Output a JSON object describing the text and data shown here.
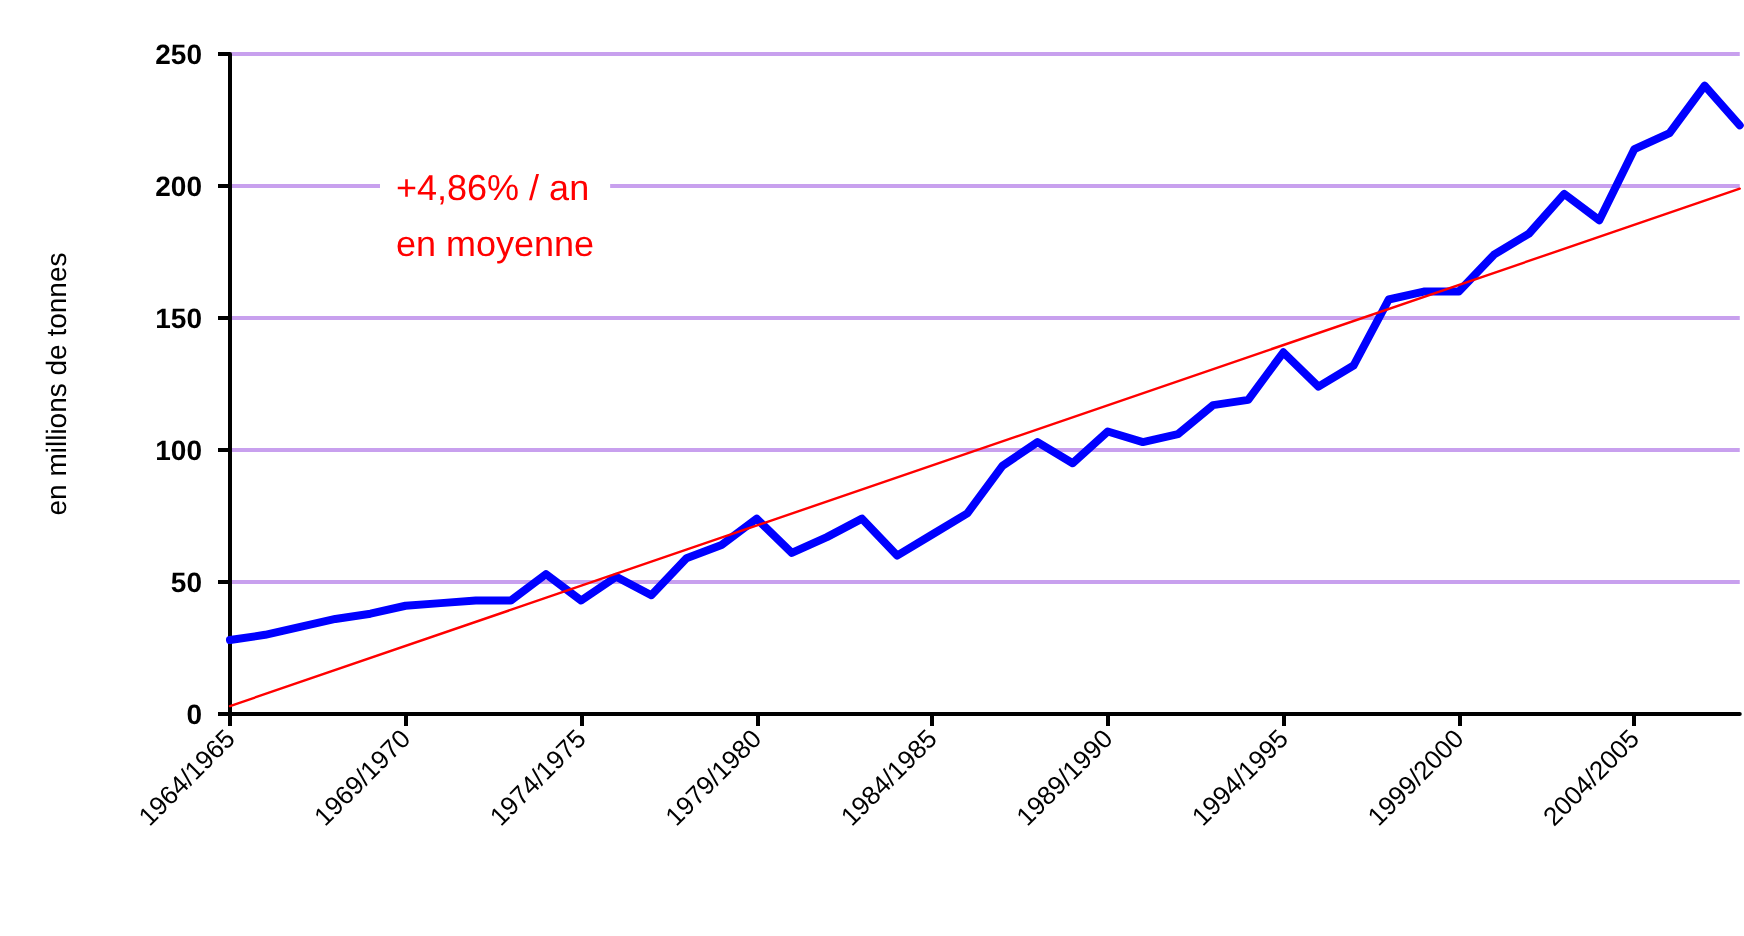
{
  "chart_data": {
    "type": "line",
    "ylabel": "en millions de tonnes",
    "categories": [
      "1964/1965",
      null,
      null,
      null,
      null,
      "1969/1970",
      null,
      null,
      null,
      null,
      "1974/1975",
      null,
      null,
      null,
      null,
      "1979/1980",
      null,
      null,
      null,
      null,
      "1984/1985",
      null,
      null,
      null,
      null,
      "1989/1990",
      null,
      null,
      null,
      null,
      "1994/1995",
      null,
      null,
      null,
      null,
      "1999/2000",
      null,
      null,
      null,
      null,
      "2004/2005",
      null,
      null,
      null
    ],
    "series": [
      {
        "color": "#0000ff",
        "values": [
          28,
          30,
          33,
          36,
          38,
          41,
          42,
          43,
          43,
          53,
          43,
          52,
          45,
          59,
          64,
          74,
          61,
          67,
          74,
          60,
          68,
          76,
          94,
          103,
          95,
          107,
          103,
          106,
          117,
          119,
          137,
          124,
          132,
          157,
          160,
          160,
          174,
          182,
          197,
          187,
          214,
          220,
          238,
          223
        ]
      },
      {
        "type": "line",
        "color": "#ff0000",
        "values": [
          3,
          null,
          null,
          null,
          null,
          null,
          null,
          null,
          null,
          null,
          null,
          null,
          null,
          null,
          null,
          null,
          null,
          null,
          null,
          null,
          null,
          null,
          null,
          null,
          null,
          null,
          null,
          null,
          null,
          null,
          null,
          null,
          null,
          null,
          null,
          null,
          null,
          null,
          null,
          null,
          null,
          null,
          null,
          199
        ]
      }
    ],
    "annotations": [
      "+4,86% / an\nen moyenne"
    ],
    "ylim": [
      0,
      250
    ],
    "yticks": [
      0,
      50,
      100,
      150,
      200,
      250
    ],
    "grid": "y",
    "marker": "none",
    "line_style": "solid"
  }
}
